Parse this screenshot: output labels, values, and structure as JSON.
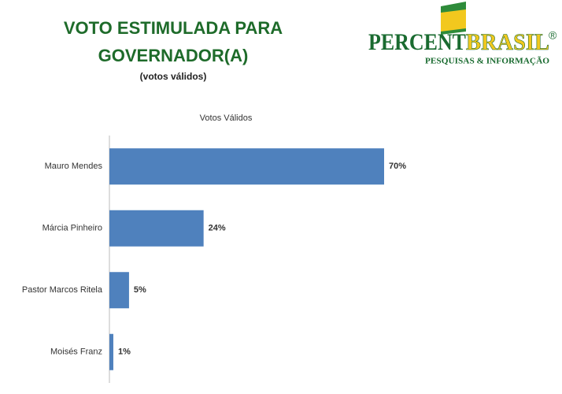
{
  "chart_data": {
    "type": "bar",
    "orientation": "horizontal",
    "title": "VOTO ESTIMULADA PARA GOVERNADOR(A)",
    "subtitle": "(votos válidos)",
    "chart_title": "Votos Válidos",
    "categories": [
      "Mauro Mendes",
      "Márcia Pinheiro",
      "Pastor Marcos Ritela",
      "Moisés Franz"
    ],
    "values": [
      70,
      24,
      5,
      1
    ],
    "value_labels": [
      "70%",
      "24%",
      "5%",
      "1%"
    ],
    "color": "#4f81bd"
  },
  "logo": {
    "name_part1": "PERCENT",
    "name_part2": "BRASIL",
    "registered": "®",
    "tagline": "PESQUISAS & INFORMAÇÃO"
  }
}
